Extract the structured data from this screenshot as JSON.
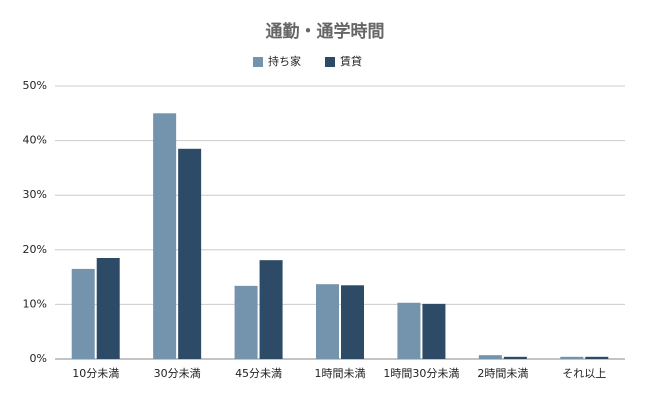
{
  "chart_data": {
    "type": "bar",
    "title": "通勤・通学時間",
    "categories": [
      "10分未満",
      "30分未満",
      "45分未満",
      "1時間未満",
      "1時間30分未満",
      "2時間未満",
      "それ以上"
    ],
    "series": [
      {
        "name": "持ち家",
        "color": "#7493ad",
        "values": [
          16.5,
          45,
          13.4,
          13.7,
          10.3,
          0.7,
          0.4
        ]
      },
      {
        "name": "賃貸",
        "color": "#2d4a66",
        "values": [
          18.5,
          38.5,
          18.1,
          13.5,
          10.1,
          0.4,
          0.4
        ]
      }
    ],
    "ylim": [
      0,
      50
    ],
    "yticks": [
      {
        "value": 0,
        "label": "0%"
      },
      {
        "value": 10,
        "label": "10%"
      },
      {
        "value": 20,
        "label": "20%"
      },
      {
        "value": 30,
        "label": "30%"
      },
      {
        "value": 40,
        "label": "40%"
      },
      {
        "value": 50,
        "label": "50%"
      }
    ],
    "grid": true,
    "legend": "top"
  }
}
